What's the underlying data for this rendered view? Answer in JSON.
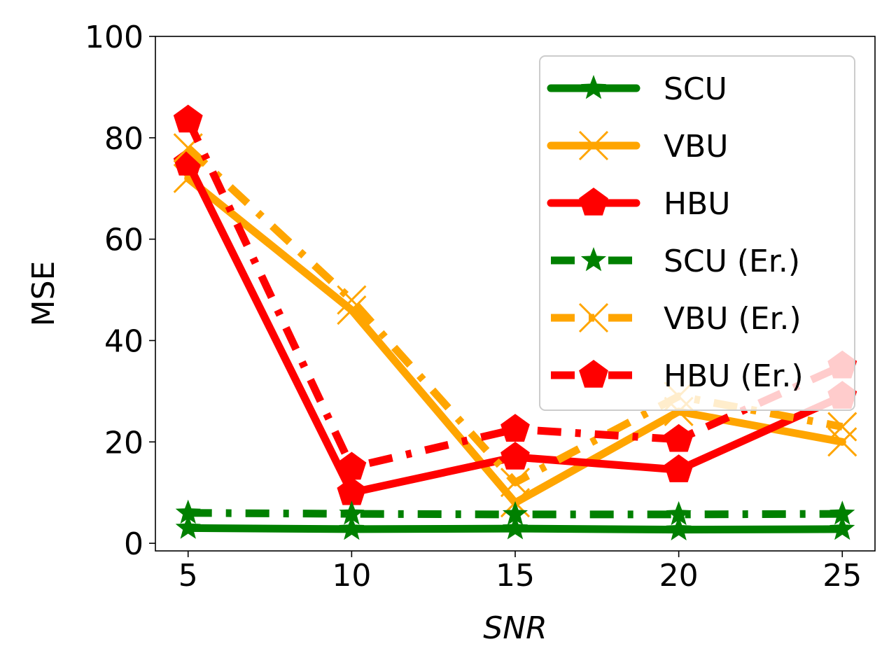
{
  "chart_data": {
    "type": "line",
    "title": "",
    "xlabel": "SNR",
    "ylabel": "MSE",
    "x": [
      5,
      10,
      15,
      20,
      25
    ],
    "xticks": [
      "5",
      "10",
      "15",
      "20",
      "25"
    ],
    "yticks": [
      "0",
      "20",
      "40",
      "60",
      "80",
      "100"
    ],
    "xlim": [
      4,
      26
    ],
    "ylim": [
      -1.5,
      100
    ],
    "grid": false,
    "legend_position": "top-right",
    "series": [
      {
        "name": "SCU",
        "color": "#008000",
        "style": "solid",
        "marker": "star",
        "values": [
          3.0,
          2.8,
          2.9,
          2.7,
          2.8
        ]
      },
      {
        "name": "VBU",
        "color": "#FFA500",
        "style": "solid",
        "marker": "x",
        "values": [
          72,
          46,
          8,
          26,
          20
        ]
      },
      {
        "name": "HBU",
        "color": "#FF0000",
        "style": "solid",
        "marker": "pentagon",
        "values": [
          75,
          10,
          17,
          14.5,
          29
        ]
      },
      {
        "name": "SCU (Er.)",
        "color": "#008000",
        "style": "dashdot",
        "marker": "star",
        "values": [
          6.0,
          5.8,
          5.7,
          5.7,
          5.8
        ]
      },
      {
        "name": "VBU (Er.)",
        "color": "#FFA500",
        "style": "dashdot",
        "marker": "x",
        "values": [
          78,
          48,
          12,
          29,
          23
        ]
      },
      {
        "name": "HBU (Er.)",
        "color": "#FF0000",
        "style": "dashdot",
        "marker": "pentagon",
        "values": [
          83.5,
          15,
          22.5,
          20.5,
          35
        ]
      }
    ]
  }
}
